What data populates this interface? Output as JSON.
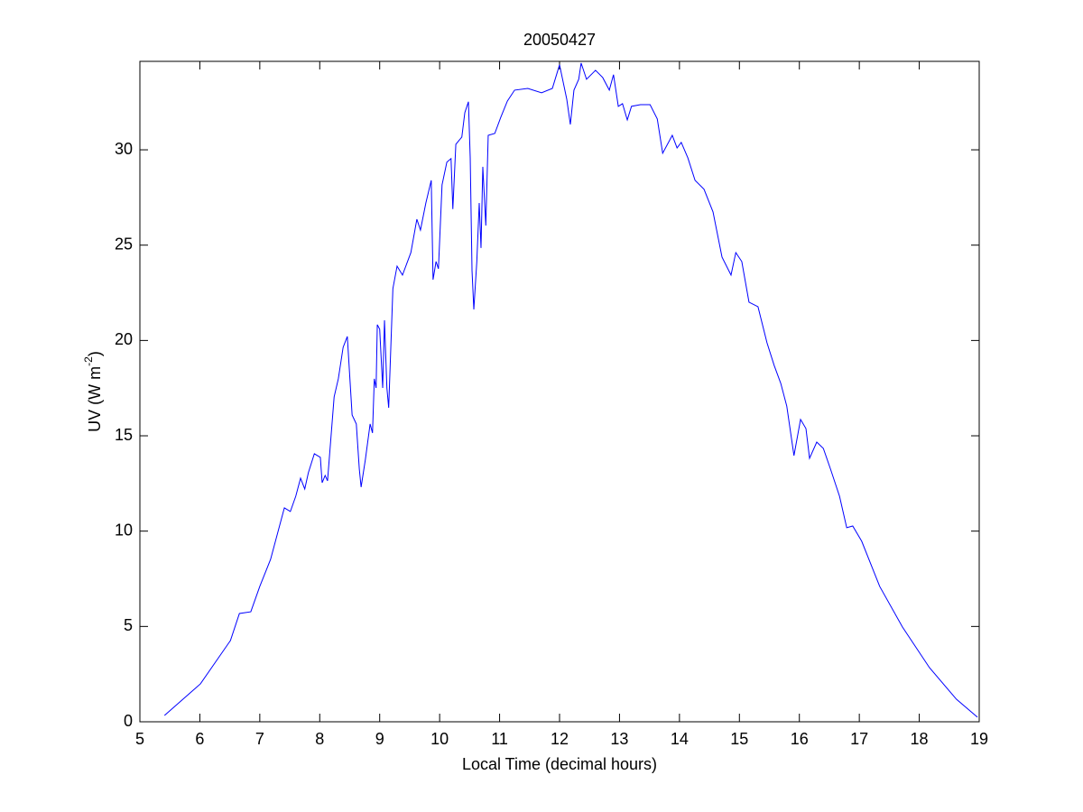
{
  "chart_data": {
    "type": "line",
    "title": "20050427",
    "xlabel": "Local Time (decimal hours)",
    "ylabel": [
      "UV (W m",
      "-2",
      ")"
    ],
    "xlim": [
      5,
      19
    ],
    "ylim": [
      0,
      34.64
    ],
    "xticks": [
      5,
      6,
      7,
      8,
      9,
      10,
      11,
      12,
      13,
      14,
      15,
      16,
      17,
      18,
      19
    ],
    "yticks": [
      0,
      5,
      10,
      15,
      20,
      25,
      30
    ],
    "grid": false,
    "series": [
      {
        "color": "#0000ff",
        "x": [
          5.41,
          6.01,
          6.51,
          6.66,
          6.85,
          7.0,
          7.18,
          7.41,
          7.51,
          7.6,
          7.68,
          7.75,
          7.81,
          7.91,
          8.01,
          8.04,
          8.09,
          8.13,
          8.24,
          8.31,
          8.39,
          8.46,
          8.54,
          8.61,
          8.66,
          8.69,
          8.76,
          8.84,
          8.88,
          8.91,
          8.94,
          8.96,
          9.0,
          9.05,
          9.08,
          9.12,
          9.15,
          9.22,
          9.29,
          9.38,
          9.52,
          9.62,
          9.68,
          9.77,
          9.86,
          9.89,
          9.94,
          9.98,
          10.04,
          10.12,
          10.19,
          10.22,
          10.27,
          10.37,
          10.42,
          10.48,
          10.51,
          10.54,
          10.57,
          10.62,
          10.66,
          10.69,
          10.72,
          10.77,
          10.81,
          10.92,
          11.02,
          11.13,
          11.25,
          11.47,
          11.7,
          11.88,
          12.0,
          12.12,
          12.18,
          12.24,
          12.32,
          12.36,
          12.45,
          12.6,
          12.72,
          12.83,
          12.9,
          12.98,
          13.05,
          13.13,
          13.2,
          13.35,
          13.51,
          13.63,
          13.72,
          13.88,
          13.96,
          14.03,
          14.14,
          14.26,
          14.41,
          14.56,
          14.71,
          14.86,
          14.94,
          15.04,
          15.16,
          15.31,
          15.46,
          15.58,
          15.69,
          15.79,
          15.91,
          16.02,
          16.11,
          16.17,
          16.29,
          16.4,
          16.52,
          16.67,
          16.79,
          16.89,
          17.04,
          17.34,
          17.72,
          18.17,
          18.62,
          18.97
        ],
        "values": [
          0.33,
          1.99,
          4.26,
          5.68,
          5.77,
          7.1,
          8.52,
          11.22,
          11.03,
          11.83,
          12.78,
          12.21,
          13.06,
          14.06,
          13.87,
          12.54,
          12.92,
          12.64,
          17.04,
          17.99,
          19.64,
          20.21,
          16.09,
          15.62,
          13.25,
          12.31,
          13.73,
          15.62,
          15.15,
          17.99,
          17.51,
          20.83,
          20.59,
          17.51,
          21.06,
          17.51,
          16.47,
          22.72,
          23.9,
          23.43,
          24.61,
          26.36,
          25.79,
          27.21,
          28.4,
          23.19,
          24.14,
          23.76,
          28.16,
          29.35,
          29.54,
          26.89,
          30.29,
          30.67,
          31.95,
          32.52,
          29.58,
          23.67,
          21.63,
          24.14,
          27.21,
          24.85,
          29.11,
          26.03,
          30.76,
          30.86,
          31.71,
          32.56,
          33.13,
          33.22,
          32.99,
          33.22,
          34.46,
          32.66,
          31.33,
          33.13,
          33.7,
          34.55,
          33.7,
          34.17,
          33.79,
          33.13,
          33.94,
          32.28,
          32.42,
          31.57,
          32.28,
          32.37,
          32.37,
          31.62,
          29.82,
          30.76,
          30.1,
          30.39,
          29.58,
          28.4,
          27.93,
          26.74,
          24.37,
          23.43,
          24.61,
          24.14,
          22.01,
          21.77,
          19.88,
          18.69,
          17.75,
          16.56,
          13.96,
          15.86,
          15.38,
          13.82,
          14.67,
          14.34,
          13.25,
          11.83,
          10.18,
          10.27,
          9.47,
          7.1,
          4.97,
          2.84,
          1.18,
          0.24
        ]
      }
    ]
  }
}
